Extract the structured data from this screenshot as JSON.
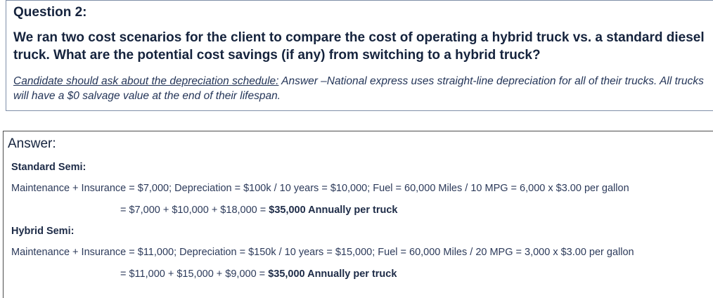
{
  "question": {
    "title": "Question 2:",
    "text": "We ran two cost scenarios for the client to compare the cost of operating a hybrid truck vs. a standard diesel truck. What are the potential cost savings (if any) from switching to a hybrid truck?",
    "note_underlined": "Candidate should ask about the depreciation schedule:",
    "note_rest": " Answer –National express uses straight-line depreciation for all of their trucks. All trucks will have a $0 salvage value at the end of their lifespan."
  },
  "answer": {
    "title": "Answer",
    "colon": ":",
    "standard": {
      "heading": "Standard Semi:",
      "calc": "Maintenance + Insurance = $7,000; Depreciation = $100k / 10 years = $10,000; Fuel = 60,000 Miles / 10 MPG = 6,000 x $3.00 per gallon",
      "total_prefix": "= $7,000 + $10,000 + $18,000 = ",
      "total_bold": "$35,000 Annually per truck"
    },
    "hybrid": {
      "heading": "Hybrid Semi:",
      "calc": "Maintenance + Insurance = $11,000; Depreciation = $150k / 10 years = $15,000; Fuel = 60,000 Miles / 20 MPG = 3,000 x $3.00 per gallon",
      "total_prefix": "= $11,000 + $15,000 + $9,000 = ",
      "total_bold": "$35,000 Annually per truck"
    }
  }
}
